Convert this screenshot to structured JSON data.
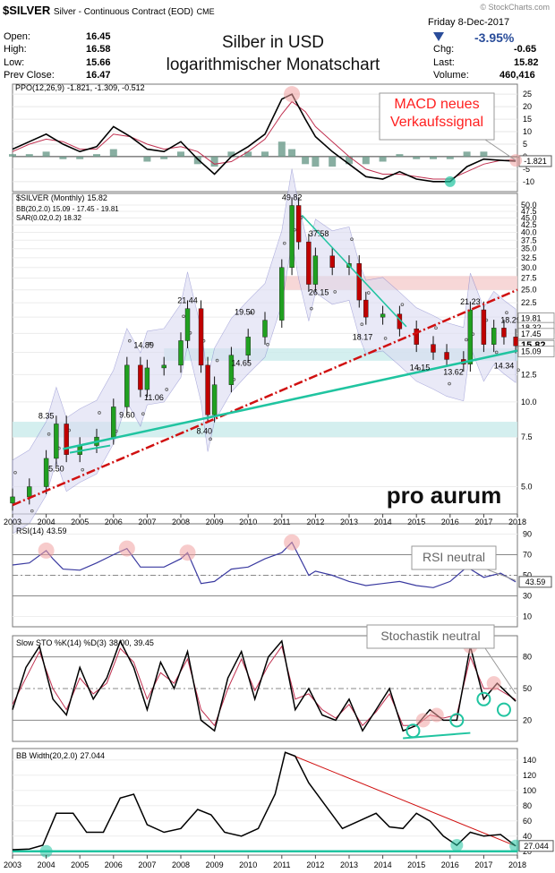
{
  "header": {
    "symbol": "$SILVER",
    "description": "Silver - Continuous Contract (EOD)",
    "exchange": "CME",
    "watermark": "© StockCharts.com",
    "date": "Friday  8-Dec-2017",
    "change_pct": "-3.95%",
    "open_label": "Open:",
    "open": "16.45",
    "high_label": "High:",
    "high": "16.58",
    "low_label": "Low:",
    "low": "15.66",
    "prev_label": "Prev Close:",
    "prev": "16.47",
    "chg_label": "Chg:",
    "chg": "-0.65",
    "last_label": "Last:",
    "last": "15.82",
    "volume_label": "Volume:",
    "volume": "460,416"
  },
  "title": {
    "line1": "Silber in USD",
    "line2": "logarithmischer Monatschart"
  },
  "brand": "pro aurum",
  "colors": {
    "price_up": "#20a020",
    "price_down": "#c00000",
    "teal": "#20c4a0",
    "annotation": "#ff2020",
    "band": "#7a7ac8"
  },
  "chart_data": [
    {
      "type": "line",
      "panel": "PPO",
      "legend": "PPO(12,26,9) -1.821, -1.309, -0.512",
      "legend_parts": [
        "PPO(12,26,9)",
        "-1.821",
        ", -1.309",
        ", -0.512"
      ],
      "y_ticks": [
        "25",
        "20",
        "15",
        "10",
        "5",
        "0",
        "-5",
        "-10"
      ],
      "ylim": [
        -14,
        29
      ],
      "last_label": "-1.821",
      "x": [
        2003,
        2003.5,
        2004,
        2004.5,
        2005,
        2005.5,
        2006,
        2006.5,
        2007,
        2007.5,
        2008,
        2008.5,
        2009,
        2009.5,
        2010,
        2010.5,
        2011,
        2011.3,
        2011.7,
        2012,
        2012.5,
        2013,
        2013.5,
        2014,
        2014.5,
        2015,
        2015.5,
        2016,
        2016.5,
        2017,
        2017.5,
        2017.95
      ],
      "series": [
        {
          "values": [
            3,
            6,
            9,
            5,
            2,
            4,
            12,
            8,
            3,
            2,
            6,
            -1,
            -7,
            0,
            4,
            9,
            23,
            25,
            15,
            8,
            2,
            -3,
            -8,
            -9,
            -6,
            -9,
            -10,
            -10,
            -4,
            -1,
            -1.5,
            -1.8
          ]
        },
        {
          "values": [
            2,
            5,
            7,
            6,
            3,
            3,
            9,
            8,
            5,
            3,
            4,
            2,
            -3,
            -2,
            2,
            7,
            17,
            22,
            18,
            12,
            6,
            0,
            -5,
            -7,
            -7,
            -8,
            -9,
            -9,
            -6,
            -3,
            -1.5,
            -1.3
          ]
        }
      ],
      "histogram": [
        1,
        1,
        2,
        -1,
        -1,
        1,
        3,
        0,
        -2,
        -1,
        2,
        -3,
        -4,
        2,
        2,
        2,
        6,
        3,
        -3,
        -4,
        -4,
        -3,
        -3,
        -2,
        1,
        -1,
        -1,
        -1,
        2,
        2,
        0,
        -0.5
      ],
      "annotation": "MACD neues\nVerkaufssignal"
    },
    {
      "type": "line",
      "panel": "Price",
      "log_scale": true,
      "legend": [
        "$SILVER (Monthly) 15.82",
        "BB(20,2.0) 15.09 - 17.45 - 19.81",
        "SAR(0.02,0.2) 18.32"
      ],
      "legend_parts": [
        "$SILVER (Monthly)",
        "15.82"
      ],
      "y_ticks": [
        "50.0",
        "47.5",
        "45.0",
        "42.5",
        "40.0",
        "37.5",
        "35.0",
        "32.5",
        "30.0",
        "27.5",
        "25.0",
        "22.5",
        "20.0",
        "17.5",
        "15.0",
        "12.5",
        "10.0",
        "7.5",
        "5.0"
      ],
      "ylim": [
        4.0,
        55
      ],
      "x_ticks": [
        "2003",
        "2004",
        "2005",
        "2006",
        "2007",
        "2008",
        "2009",
        "2010",
        "2011",
        "2012",
        "2013",
        "2014",
        "2015",
        "2016",
        "2017",
        "2018"
      ],
      "x": [
        2003,
        2003.5,
        2004,
        2004.3,
        2004.6,
        2005,
        2005.5,
        2006,
        2006.4,
        2006.8,
        2007,
        2007.5,
        2008,
        2008.2,
        2008.6,
        2008.8,
        2009,
        2009.5,
        2010,
        2010.5,
        2011,
        2011.3,
        2011.5,
        2011.8,
        2012,
        2012.5,
        2013,
        2013.3,
        2013.5,
        2014,
        2014.5,
        2015,
        2015.5,
        2015.9,
        2016.4,
        2016.6,
        2017,
        2017.3,
        2017.6,
        2017.95
      ],
      "values": [
        4.6,
        5.0,
        6.3,
        8.35,
        6.5,
        7.0,
        7.5,
        9.6,
        13.5,
        11.06,
        13.2,
        13.5,
        16.5,
        21.44,
        13.5,
        9.0,
        11.5,
        14.65,
        17.0,
        19.5,
        30.0,
        49.82,
        37.0,
        26.15,
        33.0,
        30.0,
        31.0,
        23.0,
        20.0,
        20.5,
        18.17,
        16.0,
        15.0,
        14.15,
        13.62,
        21.23,
        16.0,
        18.29,
        17.0,
        15.82
      ],
      "labels": [
        "8.35",
        "9.60",
        "5.50",
        "14.89",
        "11.06",
        "21.44",
        "8.40",
        "19.50",
        "14.65",
        "49.82",
        "37.58",
        "26.15",
        "18.17",
        "21.23",
        "14.15",
        "13.62",
        "18.29",
        "14.34"
      ],
      "right_labels": [
        "19.81",
        "18.32",
        "17.45",
        "15.82",
        "15.09"
      ],
      "zones": [
        [
          14.0,
          15.5
        ],
        [
          7.5,
          8.5
        ],
        [
          25.0,
          28.0
        ]
      ]
    },
    {
      "type": "line",
      "panel": "RSI",
      "legend": "RSI(14) 43.59",
      "legend_parts": [
        "RSI(14)",
        "43.59"
      ],
      "y_ticks": [
        "90",
        "70",
        "50",
        "30",
        "10"
      ],
      "ylim": [
        0,
        100
      ],
      "last_label": "43.59",
      "x": [
        2003,
        2003.5,
        2004,
        2004.2,
        2004.5,
        2005,
        2005.5,
        2006,
        2006.4,
        2006.8,
        2007.5,
        2008,
        2008.2,
        2008.6,
        2009,
        2009.5,
        2010,
        2010.5,
        2011,
        2011.3,
        2011.8,
        2012,
        2012.5,
        2013,
        2013.5,
        2014,
        2014.5,
        2015,
        2015.5,
        2016,
        2016.5,
        2017,
        2017.5,
        2017.95
      ],
      "values": [
        60,
        62,
        74,
        66,
        56,
        55,
        62,
        70,
        76,
        58,
        58,
        66,
        72,
        42,
        44,
        56,
        58,
        66,
        72,
        82,
        50,
        54,
        50,
        44,
        40,
        42,
        44,
        40,
        38,
        44,
        58,
        48,
        52,
        43.59
      ],
      "annotation": "RSI neutral"
    },
    {
      "type": "line",
      "panel": "Stochastic",
      "legend": "Slow STO %K(14) %D(3) 38.00, 39.45",
      "legend_parts": [
        "Slow STO %K(14) %D(3)",
        "38.00",
        ", 39.45"
      ],
      "y_ticks": [
        "80",
        "50",
        "20"
      ],
      "ylim": [
        0,
        100
      ],
      "x": [
        2003,
        2003.4,
        2003.8,
        2004.2,
        2004.6,
        2005,
        2005.4,
        2005.8,
        2006.2,
        2006.6,
        2007,
        2007.4,
        2007.8,
        2008.2,
        2008.6,
        2009,
        2009.4,
        2009.8,
        2010.2,
        2010.6,
        2011,
        2011.4,
        2011.8,
        2012.2,
        2012.6,
        2013,
        2013.4,
        2013.8,
        2014.2,
        2014.6,
        2015,
        2015.4,
        2015.8,
        2016.2,
        2016.6,
        2017,
        2017.4,
        2017.95
      ],
      "series": [
        {
          "values": [
            30,
            70,
            90,
            40,
            25,
            70,
            40,
            60,
            95,
            70,
            30,
            75,
            50,
            85,
            20,
            10,
            60,
            85,
            40,
            80,
            95,
            30,
            50,
            25,
            20,
            40,
            10,
            30,
            50,
            10,
            15,
            30,
            20,
            20,
            90,
            40,
            55,
            38
          ]
        },
        {
          "values": [
            35,
            60,
            85,
            50,
            30,
            60,
            45,
            55,
            88,
            75,
            40,
            65,
            55,
            78,
            30,
            15,
            50,
            78,
            48,
            72,
            90,
            40,
            45,
            30,
            22,
            35,
            15,
            28,
            45,
            15,
            15,
            25,
            22,
            25,
            80,
            50,
            50,
            39.45
          ]
        }
      ],
      "annotation": "Stochastik neutral"
    },
    {
      "type": "line",
      "panel": "BB Width",
      "legend": "BB Width(20,2.0) 27.044",
      "legend_parts": [
        "BB Width(20,2.0)",
        "27.044"
      ],
      "y_ticks": [
        "140",
        "120",
        "100",
        "80",
        "60",
        "40",
        "20"
      ],
      "ylim": [
        15,
        155
      ],
      "last_label": "27.044",
      "x": [
        2003,
        2003.5,
        2003.9,
        2004.3,
        2004.8,
        2005.2,
        2005.7,
        2006.2,
        2006.6,
        2007,
        2007.5,
        2008,
        2008.5,
        2008.9,
        2009.3,
        2009.8,
        2010.3,
        2010.8,
        2011.1,
        2011.4,
        2011.8,
        2012.3,
        2012.8,
        2013.3,
        2013.8,
        2014.2,
        2014.6,
        2015,
        2015.4,
        2015.8,
        2016.2,
        2016.6,
        2017,
        2017.5,
        2017.95
      ],
      "values": [
        22,
        23,
        28,
        70,
        70,
        45,
        45,
        90,
        95,
        55,
        45,
        50,
        75,
        68,
        45,
        40,
        50,
        95,
        150,
        145,
        110,
        80,
        50,
        60,
        70,
        52,
        50,
        70,
        60,
        40,
        28,
        45,
        40,
        42,
        27.044
      ]
    }
  ]
}
